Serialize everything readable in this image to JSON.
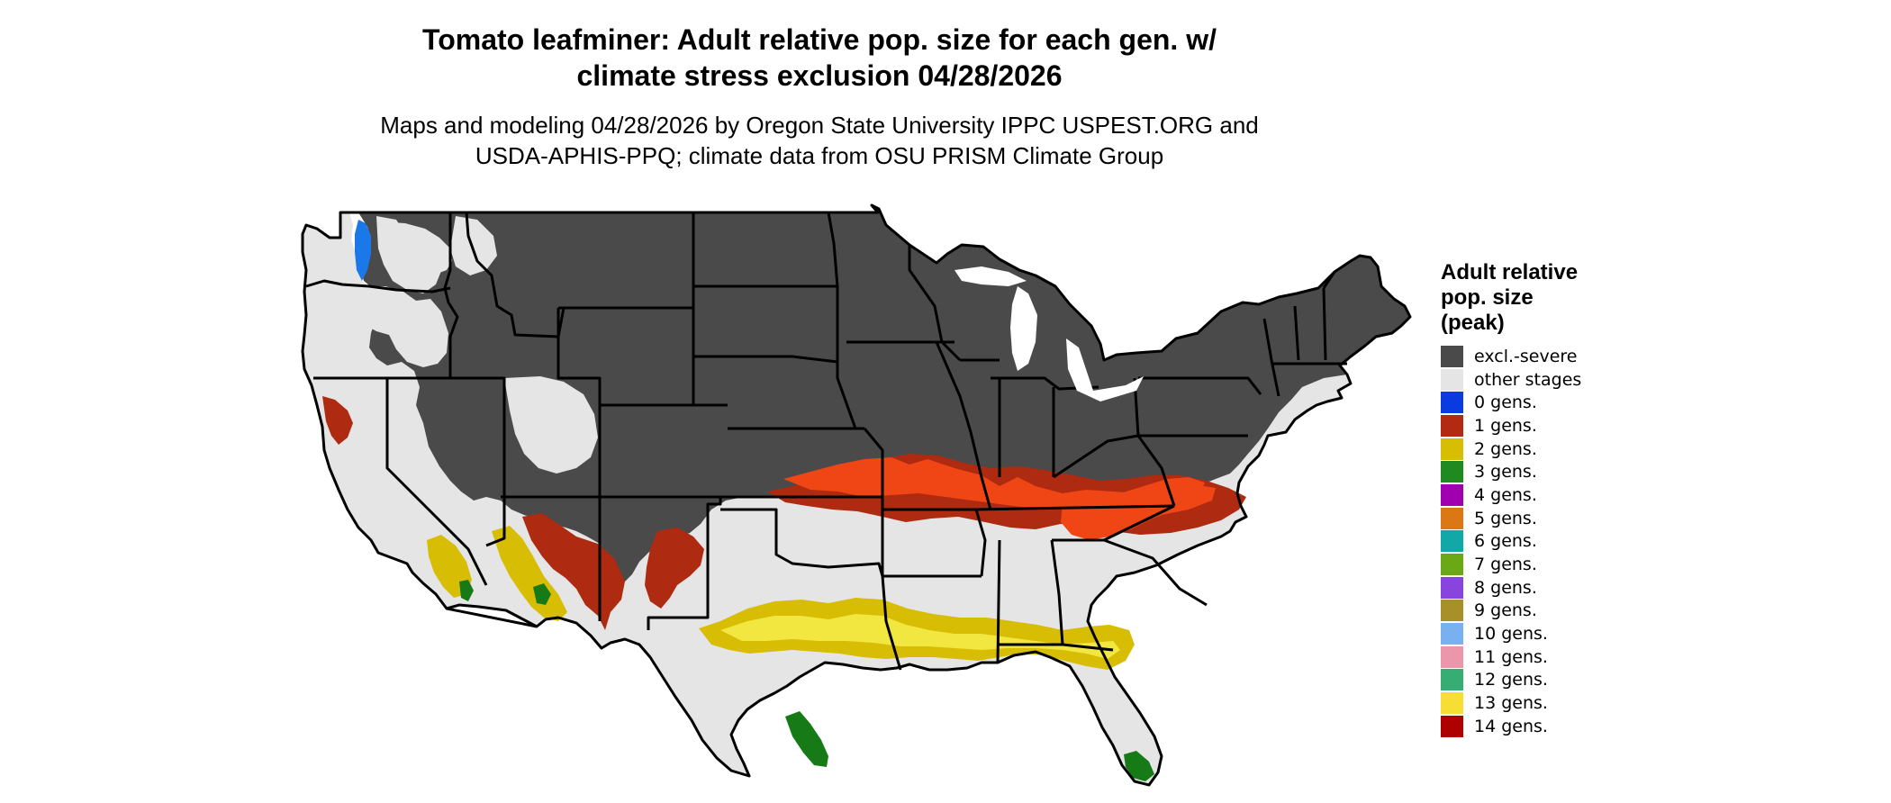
{
  "title": {
    "line1": "Tomato leafminer: Adult relative pop. size for each gen. w/",
    "line2": "climate stress exclusion 04/28/2026"
  },
  "subtitle": {
    "line1": "Maps and modeling 04/28/2026 by Oregon State University IPPC USPEST.ORG and",
    "line2": "USDA-APHIS-PPQ; climate data from OSU PRISM Climate Group"
  },
  "legend": {
    "title_lines": [
      "Adult relative",
      "pop. size",
      "(peak)"
    ],
    "items": [
      {
        "label": "excl.-severe",
        "color": "#4a4a4a"
      },
      {
        "label": "other stages",
        "color": "#e5e5e5"
      },
      {
        "label": "0 gens.",
        "color": "#0a3be0"
      },
      {
        "label": "1 gens.",
        "color": "#b22a12"
      },
      {
        "label": "2 gens.",
        "color": "#d8bd05"
      },
      {
        "label": "3 gens.",
        "color": "#1f8a1f"
      },
      {
        "label": "4 gens.",
        "color": "#a000b0"
      },
      {
        "label": "5 gens.",
        "color": "#dc7716"
      },
      {
        "label": "6 gens.",
        "color": "#12a8a8"
      },
      {
        "label": "7 gens.",
        "color": "#6aa815"
      },
      {
        "label": "8 gens.",
        "color": "#8844dd"
      },
      {
        "label": "9 gens.",
        "color": "#a89028"
      },
      {
        "label": "10 gens.",
        "color": "#79b0f0"
      },
      {
        "label": "11 gens.",
        "color": "#ec96ac"
      },
      {
        "label": "12 gens.",
        "color": "#36ad72"
      },
      {
        "label": "13 gens.",
        "color": "#f6de34"
      },
      {
        "label": "14 gens.",
        "color": "#ae0000"
      }
    ]
  },
  "map": {
    "colors": {
      "excluded": "#4a4a4a",
      "other": "#e5e5e5",
      "gen0": "#1a78e8",
      "gen1": "#ae2a10",
      "gen1_bright": "#f04515",
      "gen2": "#d8bd05",
      "gen2_light": "#f2e640",
      "gen3": "#167a16",
      "border": "#000000"
    }
  }
}
